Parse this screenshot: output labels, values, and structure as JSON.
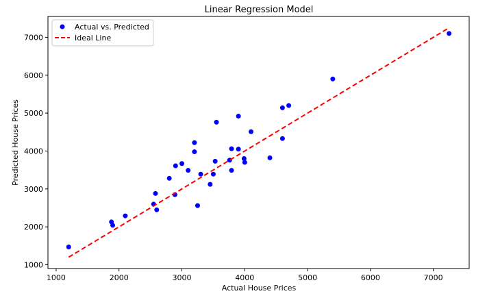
{
  "chart_data": {
    "type": "scatter",
    "title": "Linear Regression Model",
    "xlabel": "Actual House Prices",
    "ylabel": "Predicted House Prices",
    "xlim": [
      870,
      7570
    ],
    "ylim": [
      900,
      7550
    ],
    "xticks": [
      1000,
      2000,
      3000,
      4000,
      5000,
      6000,
      7000
    ],
    "yticks": [
      1000,
      2000,
      3000,
      4000,
      5000,
      6000,
      7000
    ],
    "grid": false,
    "legend_position": "top-left",
    "series": [
      {
        "name": "Actual vs. Predicted",
        "kind": "scatter",
        "color": "#0000ff",
        "x": [
          1200,
          1880,
          1900,
          2100,
          2550,
          2580,
          2600,
          2800,
          2890,
          2900,
          3000,
          3100,
          3200,
          3200,
          3250,
          3300,
          3450,
          3500,
          3530,
          3550,
          3760,
          3790,
          3790,
          3900,
          3900,
          3990,
          4000,
          4100,
          4400,
          4600,
          4600,
          4700,
          5400,
          7250
        ],
        "y": [
          1470,
          2130,
          2040,
          2290,
          2600,
          2880,
          2450,
          3280,
          2850,
          3610,
          3670,
          3490,
          4220,
          3980,
          2560,
          3390,
          3120,
          3390,
          3730,
          4760,
          3760,
          3490,
          4060,
          4050,
          4920,
          3800,
          3700,
          4510,
          3820,
          4330,
          5140,
          5200,
          5900,
          7100
        ]
      },
      {
        "name": "Ideal Line",
        "kind": "line",
        "color": "#ff0000",
        "style": "dashed",
        "x": [
          1200,
          7250
        ],
        "y": [
          1200,
          7250
        ]
      }
    ]
  }
}
